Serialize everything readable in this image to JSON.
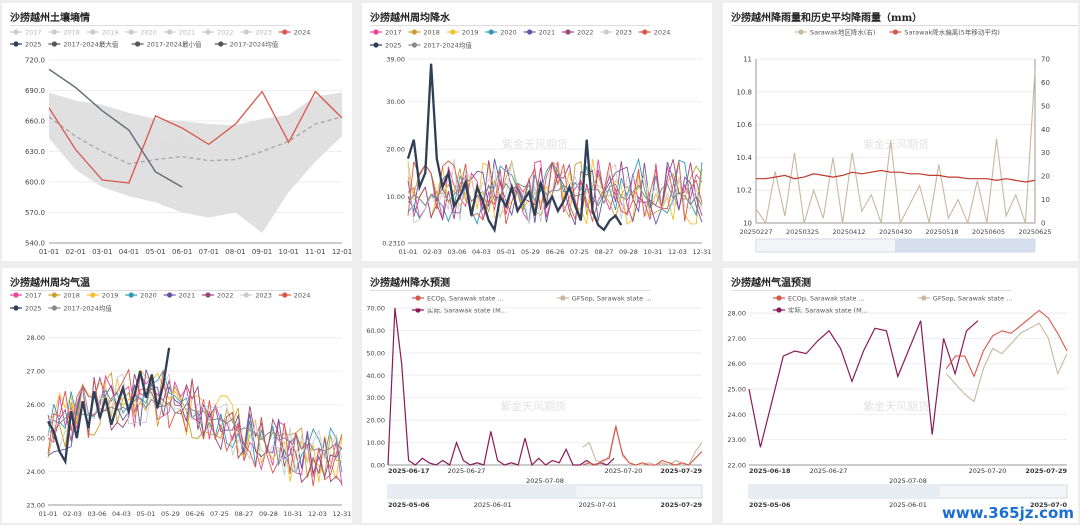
{
  "watermark": "紫金天风期货",
  "site_watermark": "www.365jz.com",
  "chart_data": [
    {
      "id": "soil",
      "type": "line",
      "title": "沙捞越州土壤墒情",
      "legend": [
        {
          "name": "2017",
          "color": "#cccccc",
          "active": false
        },
        {
          "name": "2018",
          "color": "#cccccc",
          "active": false
        },
        {
          "name": "2019",
          "color": "#cccccc",
          "active": false
        },
        {
          "name": "2020",
          "color": "#cccccc",
          "active": false
        },
        {
          "name": "2021",
          "color": "#cccccc",
          "active": false
        },
        {
          "name": "2022",
          "color": "#cccccc",
          "active": false
        },
        {
          "name": "2023",
          "color": "#cccccc",
          "active": false
        },
        {
          "name": "2024",
          "color": "#d9574a",
          "active": true
        },
        {
          "name": "2025",
          "color": "#2f3f55",
          "active": true
        },
        {
          "name": "2017-2024最大值",
          "color": "#555555",
          "active": true
        },
        {
          "name": "2017-2024最小值",
          "color": "#555555",
          "active": true
        },
        {
          "name": "2017-2024均值",
          "color": "#555555",
          "active": true
        }
      ],
      "x": [
        "01-01",
        "02-01",
        "03-01",
        "04-01",
        "05-01",
        "06-01",
        "07-01",
        "08-01",
        "09-01",
        "10-01",
        "11-01",
        "12-01"
      ],
      "ylim": [
        540,
        720
      ],
      "yticks": [
        "540.0",
        "570.0",
        "600.0",
        "630.0",
        "660.0",
        "690.0",
        "720.0"
      ],
      "range_max": [
        688,
        680,
        676,
        668,
        662,
        660,
        657,
        656,
        662,
        666,
        684,
        688
      ],
      "range_min": [
        643,
        612,
        595,
        586,
        580,
        570,
        565,
        570,
        550,
        590,
        620,
        645
      ],
      "mean": [
        664,
        645,
        630,
        618,
        622,
        625,
        621,
        622,
        630,
        640,
        657,
        664
      ],
      "y2024": [
        673,
        632,
        602,
        599,
        665,
        653,
        637,
        657,
        689,
        639,
        689,
        663
      ],
      "y2025": [
        711,
        693,
        670,
        651,
        610,
        595
      ]
    },
    {
      "id": "weekly_rain",
      "type": "line",
      "title": "沙捞越州周均降水",
      "legend": [
        {
          "name": "2017",
          "color": "#e8439b"
        },
        {
          "name": "2018",
          "color": "#c7a032"
        },
        {
          "name": "2019",
          "color": "#f2c12e"
        },
        {
          "name": "2020",
          "color": "#2f9bb8"
        },
        {
          "name": "2021",
          "color": "#6a52a3"
        },
        {
          "name": "2022",
          "color": "#a0457a"
        },
        {
          "name": "2023",
          "color": "#cccccc"
        },
        {
          "name": "2024",
          "color": "#d9574a"
        },
        {
          "name": "2025",
          "color": "#2f3f55"
        },
        {
          "name": "2017-2024均值",
          "color": "#888888"
        }
      ],
      "x": [
        "01-01",
        "02-03",
        "03-06",
        "04-03",
        "05-01",
        "05-29",
        "06-26",
        "07-25",
        "08-27",
        "09-28",
        "10-31",
        "12-03",
        "12-31"
      ],
      "yticks": [
        "0.2310",
        "10.00",
        "20.00",
        "30.00",
        "39.00"
      ],
      "ylim": [
        0.231,
        39
      ],
      "y2025": [
        18,
        22,
        12,
        15,
        38,
        18,
        12,
        15,
        8,
        10,
        13,
        6,
        12,
        9,
        5,
        3,
        10,
        8,
        12,
        7,
        9,
        11,
        6,
        13,
        8,
        10,
        7,
        9,
        12,
        8,
        5,
        22,
        7,
        4,
        3,
        5,
        6,
        4
      ]
    },
    {
      "id": "rain_hist",
      "type": "line",
      "title": "沙捞越州降雨量和历史平均降雨量（mm）",
      "legend": [
        {
          "name": "Sarawak地区降水(右)",
          "color": "#c9b8a0"
        },
        {
          "name": "Sarawak降水偏离(5年移动平均)",
          "color": "#d9574a"
        }
      ],
      "x": [
        "20250227",
        "20250325",
        "20250412",
        "20250430",
        "20250518",
        "20250605",
        "20250625"
      ],
      "yleft_ticks": [
        "10",
        "10.2",
        "10.4",
        "10.6",
        "10.8",
        "11"
      ],
      "yright_ticks": [
        "0",
        "10",
        "20",
        "30",
        "40",
        "50",
        "60",
        "70"
      ],
      "yleft_lim": [
        10,
        11
      ],
      "yright_lim": [
        0,
        70
      ],
      "deviation": [
        10.27,
        10.27,
        10.28,
        10.29,
        10.27,
        10.28,
        10.3,
        10.29,
        10.28,
        10.29,
        10.31,
        10.3,
        10.31,
        10.32,
        10.31,
        10.31,
        10.3,
        10.3,
        10.29,
        10.29,
        10.28,
        10.28,
        10.27,
        10.27,
        10.27,
        10.26,
        10.27,
        10.26,
        10.25,
        10.26
      ],
      "rainfall": [
        6,
        0,
        22,
        3,
        30,
        0,
        14,
        2,
        28,
        0,
        30,
        5,
        12,
        0,
        35,
        0,
        8,
        16,
        0,
        25,
        2,
        10,
        0,
        18,
        0,
        36,
        3,
        12,
        0,
        65
      ]
    },
    {
      "id": "weekly_temp",
      "type": "line",
      "title": "沙捞越州周均气温",
      "legend": [
        {
          "name": "2017",
          "color": "#e8439b"
        },
        {
          "name": "2018",
          "color": "#c7a032"
        },
        {
          "name": "2019",
          "color": "#f2c12e"
        },
        {
          "name": "2020",
          "color": "#2f9bb8"
        },
        {
          "name": "2021",
          "color": "#6a52a3"
        },
        {
          "name": "2022",
          "color": "#a0457a"
        },
        {
          "name": "2023",
          "color": "#cccccc"
        },
        {
          "name": "2024",
          "color": "#d9574a"
        },
        {
          "name": "2025",
          "color": "#2f3f55"
        },
        {
          "name": "2017-2024均值",
          "color": "#888888"
        }
      ],
      "x": [
        "01-01",
        "02-03",
        "03-06",
        "04-03",
        "05-01",
        "05-29",
        "06-26",
        "07-25",
        "08-27",
        "09-28",
        "10-31",
        "12-03",
        "12-31"
      ],
      "yticks": [
        "23.00",
        "24.00",
        "25.00",
        "26.00",
        "27.00",
        "28.00"
      ],
      "ylim": [
        23,
        28.5
      ],
      "y2025": [
        25.5,
        25.2,
        24.6,
        24.3,
        25.8,
        25.0,
        26.1,
        25.3,
        26.4,
        25.6,
        26.2,
        25.4,
        26.0,
        26.5,
        25.8,
        26.3,
        27.0,
        26.2,
        26.9,
        25.9,
        26.6,
        27.7
      ]
    },
    {
      "id": "rain_fcst",
      "type": "line",
      "title": "沙捞越州降水预测",
      "legend": [
        {
          "name": "ECOp, Sarawak state ...",
          "color": "#d9574a"
        },
        {
          "name": "GFSop, Sarawak state ...",
          "color": "#c9b8a0"
        },
        {
          "name": "实际, Sarawak state (M...",
          "color": "#8a1a5a"
        }
      ],
      "yticks": [
        "0.00",
        "10.00",
        "20.00",
        "30.00",
        "40.00",
        "50.00",
        "60.00",
        "70.00"
      ],
      "ylim": [
        0,
        70
      ],
      "xlabels": [
        {
          "t": "2025-06-17",
          "bold": true,
          "row": 0
        },
        {
          "t": "2025-06-27",
          "bold": false,
          "row": 0
        },
        {
          "t": "2025-07-08",
          "bold": false,
          "row": 1
        },
        {
          "t": "2025-07-20",
          "bold": false,
          "row": 0
        },
        {
          "t": "2025-07-29",
          "bold": true,
          "row": 0
        }
      ],
      "slider_labels": [
        "2025-05-06",
        "2025-06-01",
        "2025-07-01",
        "2025-07-29"
      ],
      "actual": [
        0,
        70,
        45,
        2,
        0,
        3,
        1,
        0,
        2,
        0,
        10,
        2,
        0,
        1,
        0,
        15,
        2,
        0,
        1,
        0,
        12,
        0,
        3,
        0,
        2,
        1,
        7,
        0,
        0,
        2,
        0,
        1,
        0,
        3
      ],
      "ecop": [
        0,
        1,
        0,
        2,
        3,
        17,
        5,
        1,
        0,
        1,
        0,
        0,
        2,
        1,
        0,
        1,
        0,
        3,
        6
      ],
      "gfsop": [
        8,
        10,
        2,
        1,
        4,
        18,
        4,
        1,
        0,
        0,
        1,
        0,
        1,
        0,
        2,
        1,
        0,
        6,
        10
      ]
    },
    {
      "id": "temp_fcst",
      "type": "line",
      "title": "沙捞越州气温预测",
      "legend": [
        {
          "name": "ECOp, Sarawak state ...",
          "color": "#d9574a"
        },
        {
          "name": "GFSop, Sarawak state ...",
          "color": "#c9b8a0"
        },
        {
          "name": "实际, Sarawak state (M...",
          "color": "#8a1a5a"
        }
      ],
      "yticks": [
        "22.00",
        "23.00",
        "24.00",
        "25.00",
        "26.00",
        "27.00",
        "28.00"
      ],
      "ylim": [
        22,
        28.2
      ],
      "xlabels": [
        {
          "t": "2025-06-18",
          "bold": true,
          "row": 0
        },
        {
          "t": "2025-06-27",
          "bold": false,
          "row": 0
        },
        {
          "t": "2025-07-08",
          "bold": false,
          "row": 1
        },
        {
          "t": "2025-07-20",
          "bold": false,
          "row": 0
        },
        {
          "t": "2025-07-29",
          "bold": true,
          "row": 0
        }
      ],
      "slider_labels": [
        "2025-05-06",
        "2025-06-01",
        "2025-07-0"
      ],
      "actual": [
        25.0,
        22.7,
        24.5,
        26.3,
        26.5,
        26.4,
        26.9,
        27.3,
        26.6,
        25.3,
        26.5,
        27.4,
        27.3,
        25.5,
        26.6,
        27.7,
        23.2,
        27.0,
        25.6,
        27.3,
        27.7
      ],
      "ecop": [
        25.8,
        26.3,
        26.3,
        25.5,
        26.5,
        27.1,
        27.3,
        27.2,
        27.5,
        27.8,
        28.1,
        27.8,
        27.2,
        26.5
      ],
      "gfsop": [
        25.6,
        25.2,
        24.8,
        24.5,
        25.8,
        26.6,
        26.4,
        26.8,
        27.2,
        27.4,
        27.6,
        27.0,
        25.6,
        26.4
      ]
    }
  ]
}
